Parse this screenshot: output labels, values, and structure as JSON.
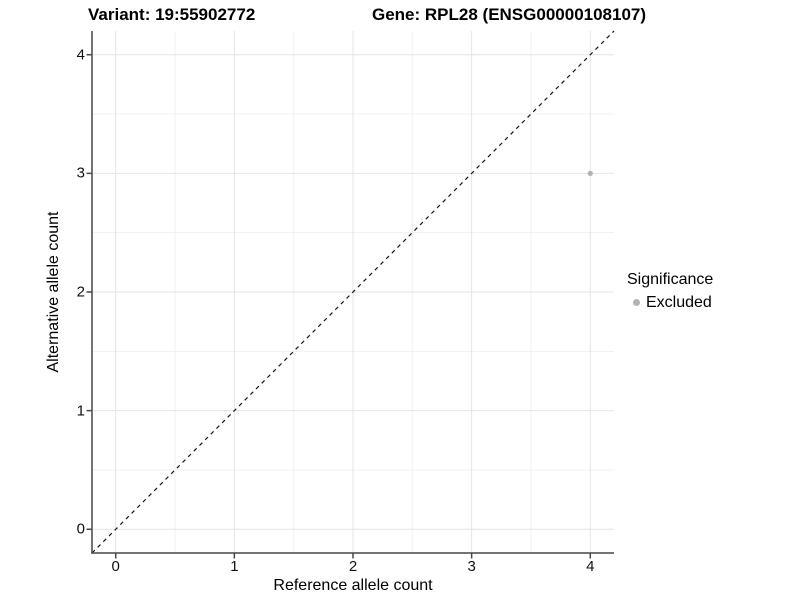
{
  "header": {
    "variant_title": "Variant: 19:55902772",
    "gene_title": "Gene: RPL28 (ENSG00000108107)"
  },
  "legend": {
    "title": "Significance",
    "entries": [
      {
        "label": "Excluded",
        "color": "#b3b3b3"
      }
    ]
  },
  "chart_data": {
    "type": "scatter",
    "xlabel": "Reference allele count",
    "ylabel": "Alternative allele count",
    "xlim": [
      -0.2,
      4.2
    ],
    "ylim": [
      -0.2,
      4.2
    ],
    "x_ticks": [
      0,
      1,
      2,
      3,
      4
    ],
    "y_ticks": [
      0,
      1,
      2,
      3,
      4
    ],
    "x_minor_ticks": [
      0.5,
      1.5,
      2.5,
      3.5
    ],
    "y_minor_ticks": [
      0.5,
      1.5,
      2.5,
      3.5
    ],
    "grid": "major+minor",
    "legend_position": "right",
    "reference_line": {
      "kind": "identity",
      "style": "dashed",
      "color": "#141414"
    },
    "series": [
      {
        "name": "Excluded",
        "color": "#b3b3b3",
        "points": [
          {
            "x": 4,
            "y": 3
          }
        ]
      }
    ]
  },
  "colors": {
    "grid_major": "#e4e4e4",
    "grid_minor": "#f1f1f1",
    "axis_line": "#474747",
    "tick_mark": "#474747",
    "point": "#b3b3b3",
    "text": "#000000"
  }
}
